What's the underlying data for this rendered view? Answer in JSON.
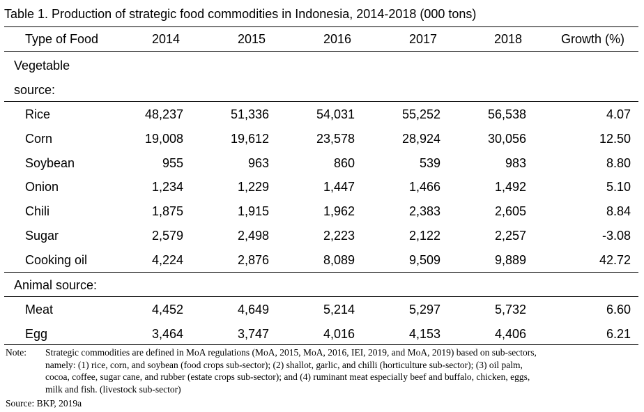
{
  "title": "Table 1. Production of strategic food commodities in Indonesia, 2014-2018 (000 tons)",
  "columns": [
    "Type of Food",
    "2014",
    "2015",
    "2016",
    "2017",
    "2018",
    "Growth (%)"
  ],
  "section_vegetable": [
    "Vegetable",
    "source:"
  ],
  "section_animal": "Animal source:",
  "vegetable_rows": [
    {
      "name": "Rice",
      "values": [
        "48,237",
        "51,336",
        "54,031",
        "55,252",
        "56,538",
        "4.07"
      ]
    },
    {
      "name": "Corn",
      "values": [
        "19,008",
        "19,612",
        "23,578",
        "28,924",
        "30,056",
        "12.50"
      ]
    },
    {
      "name": "Soybean",
      "values": [
        "955",
        "963",
        "860",
        "539",
        "983",
        "8.80"
      ]
    },
    {
      "name": "Onion",
      "values": [
        "1,234",
        "1,229",
        "1,447",
        "1,466",
        "1,492",
        "5.10"
      ]
    },
    {
      "name": "Chili",
      "values": [
        "1,875",
        "1,915",
        "1,962",
        "2,383",
        "2,605",
        "8.84"
      ]
    },
    {
      "name": "Sugar",
      "values": [
        "2,579",
        "2,498",
        "2,223",
        "2,122",
        "2,257",
        "-3.08"
      ]
    },
    {
      "name": "Cooking oil",
      "values": [
        "4,224",
        "2,876",
        "8,089",
        "9,509",
        "9,889",
        "42.72"
      ]
    }
  ],
  "animal_rows": [
    {
      "name": "Meat",
      "values": [
        "4,452",
        "4,649",
        "5,214",
        "5,297",
        "5,732",
        "6.60"
      ]
    },
    {
      "name": "Egg",
      "values": [
        "3,464",
        "3,747",
        "4,016",
        "4,153",
        "4,406",
        "6.21"
      ]
    }
  ],
  "note_label": "Note:",
  "note_lines": [
    "Strategic commodities are defined in MoA regulations (MoA, 2015, MoA, 2016, IEI, 2019, and MoA, 2019) based on sub-sectors,",
    "namely: (1) rice, corn, and soybean (food crops sub-sector); (2) shallot, garlic, and chilli (horticulture sub-sector); (3) oil palm,",
    "cocoa, coffee, sugar cane, and rubber (estate crops sub-sector); and (4) ruminant meat especially beef and buffalo, chicken, eggs,",
    "milk and fish. (livestock sub-sector)"
  ],
  "source": "Source: BKP, 2019a"
}
